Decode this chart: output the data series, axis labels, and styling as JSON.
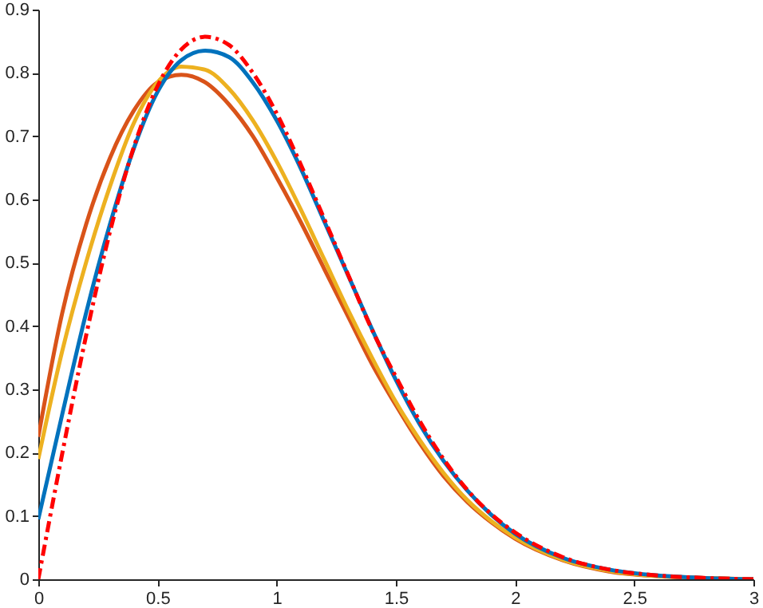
{
  "chart_data": {
    "type": "line",
    "x": [
      0,
      0.1,
      0.2,
      0.3,
      0.4,
      0.5,
      0.6,
      0.7,
      0.8,
      0.9,
      1.0,
      1.1,
      1.2,
      1.3,
      1.4,
      1.5,
      1.6,
      1.7,
      1.8,
      1.9,
      2.0,
      2.2,
      2.4,
      2.6,
      2.8,
      3.0
    ],
    "series": [
      {
        "color": "#d95319",
        "values": [
          0.225,
          0.42,
          0.56,
          0.665,
          0.74,
          0.785,
          0.797,
          0.785,
          0.75,
          0.7,
          0.635,
          0.565,
          0.49,
          0.415,
          0.34,
          0.275,
          0.215,
          0.163,
          0.122,
          0.09,
          0.064,
          0.03,
          0.012,
          0.005,
          0.002,
          0
        ]
      },
      {
        "color": "#edb120",
        "values": [
          0.19,
          0.36,
          0.5,
          0.62,
          0.72,
          0.785,
          0.81,
          0.805,
          0.775,
          0.725,
          0.66,
          0.585,
          0.505,
          0.425,
          0.35,
          0.28,
          0.22,
          0.168,
          0.125,
          0.092,
          0.066,
          0.031,
          0.013,
          0.005,
          0.002,
          0
        ]
      },
      {
        "color": "#0072bd",
        "values": [
          0.095,
          0.26,
          0.42,
          0.56,
          0.68,
          0.77,
          0.82,
          0.835,
          0.825,
          0.785,
          0.725,
          0.65,
          0.565,
          0.48,
          0.395,
          0.315,
          0.245,
          0.187,
          0.14,
          0.102,
          0.072,
          0.034,
          0.015,
          0.006,
          0.002,
          0
        ]
      },
      {
        "color": "#ff0000",
        "line_style": "dashed",
        "values": [
          0,
          0.198,
          0.384,
          0.548,
          0.682,
          0.779,
          0.837,
          0.857,
          0.844,
          0.8,
          0.736,
          0.656,
          0.569,
          0.481,
          0.394,
          0.32,
          0.25,
          0.19,
          0.141,
          0.103,
          0.074,
          0.035,
          0.015,
          0.006,
          0.002,
          0
        ]
      }
    ],
    "xlim": [
      0,
      3
    ],
    "xticks": [
      0,
      0.5,
      1,
      1.5,
      2,
      2.5,
      3
    ],
    "ylim": [
      0,
      0.9
    ],
    "yticks": [
      0,
      0.1,
      0.2,
      0.3,
      0.4,
      0.5,
      0.6,
      0.7,
      0.8,
      0.9
    ],
    "grid": false,
    "legend": false,
    "marker": "none",
    "line_style": "solid"
  }
}
